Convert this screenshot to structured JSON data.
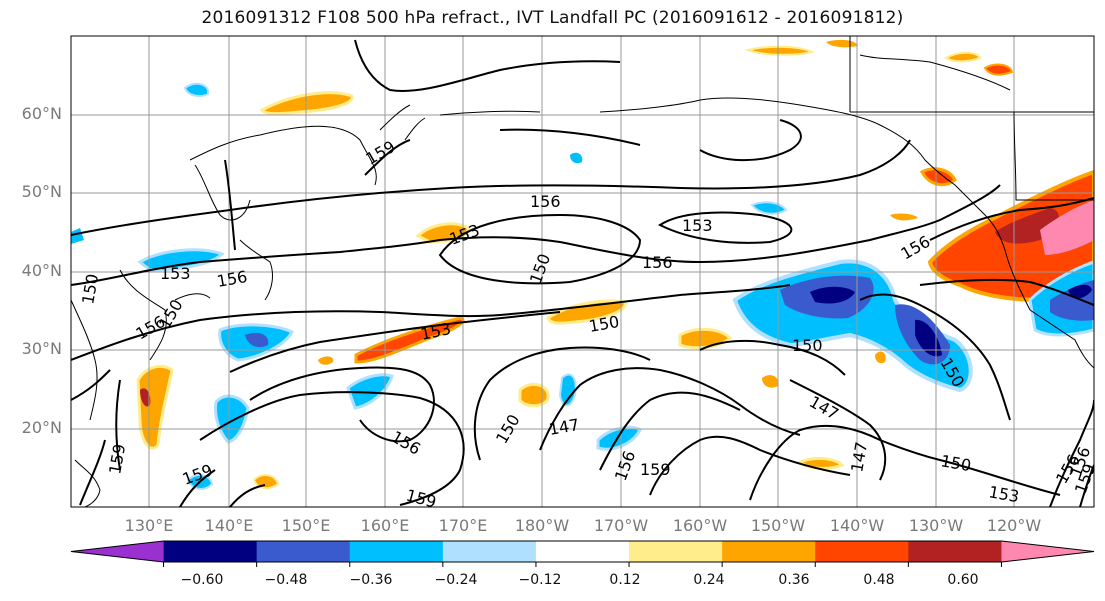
{
  "title": "2016091312 F108 500 hPa refract., IVT Landfall PC (2016091612 - 2016091812)",
  "map": {
    "lat_labels": [
      "60°N",
      "50°N",
      "40°N",
      "30°N",
      "20°N"
    ],
    "lon_labels": [
      "130°E",
      "140°E",
      "150°E",
      "160°E",
      "170°E",
      "180°W",
      "170°W",
      "160°W",
      "150°W",
      "140°W",
      "130°W",
      "120°W"
    ],
    "contour_labels": [
      "159",
      "156",
      "153",
      "156",
      "153",
      "150",
      "156",
      "153",
      "150",
      "156",
      "150",
      "156",
      "150",
      "153",
      "150",
      "147",
      "156",
      "159",
      "150",
      "147",
      "147",
      "150",
      "153",
      "156",
      "159",
      "159",
      "156",
      "159",
      "156",
      "159",
      "150"
    ]
  },
  "colorbar": {
    "colors": [
      "#9b30d0",
      "#000080",
      "#3a5bcd",
      "#00bfff",
      "#b0e0ff",
      "#ffffff",
      "#ffec8b",
      "#ffa500",
      "#ff4500",
      "#b22222",
      "#ff88b0"
    ],
    "tick_labels": [
      "−0.60",
      "−0.48",
      "−0.36",
      "−0.24",
      "−0.12",
      "0.12",
      "0.24",
      "0.36",
      "0.48",
      "0.60"
    ]
  }
}
